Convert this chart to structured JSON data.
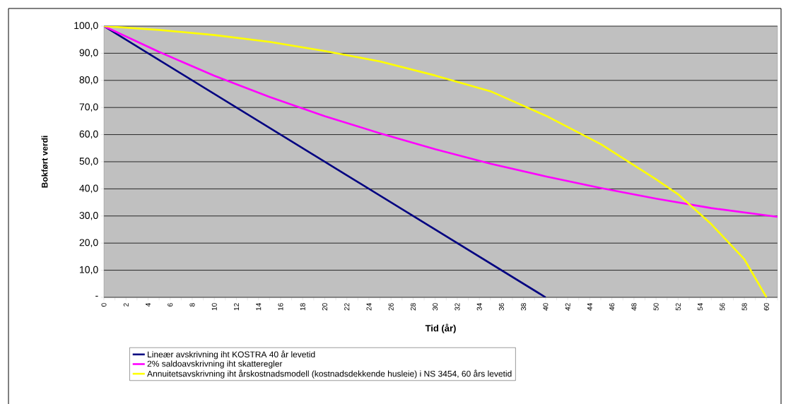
{
  "chart_data": {
    "type": "line",
    "xlabel": "Tid (år)",
    "ylabel": "Bokført verdi",
    "xlim": [
      0,
      61
    ],
    "ylim": [
      0,
      100
    ],
    "xticks": [
      0,
      {
        "value": 1,
        "label": null
      },
      2,
      {
        "value": 3,
        "label": null
      },
      4,
      {
        "value": 5,
        "label": null
      },
      6,
      {
        "value": 7,
        "label": null
      },
      8,
      {
        "value": 9,
        "label": null
      },
      10,
      {
        "value": 11,
        "label": null
      },
      12,
      {
        "value": 13,
        "label": null
      },
      14,
      {
        "value": 15,
        "label": null
      },
      16,
      {
        "value": 17,
        "label": null
      },
      18,
      {
        "value": 19,
        "label": null
      },
      20,
      {
        "value": 21,
        "label": null
      },
      22,
      {
        "value": 23,
        "label": null
      },
      24,
      {
        "value": 25,
        "label": null
      },
      26,
      {
        "value": 27,
        "label": null
      },
      28,
      {
        "value": 29,
        "label": null
      },
      30,
      {
        "value": 31,
        "label": null
      },
      32,
      {
        "value": 33,
        "label": null
      },
      34,
      {
        "value": 35,
        "label": null
      },
      36,
      {
        "value": 37,
        "label": null
      },
      38,
      {
        "value": 39,
        "label": null
      },
      40,
      {
        "value": 41,
        "label": null
      },
      42,
      {
        "value": 43,
        "label": null
      },
      44,
      {
        "value": 45,
        "label": null
      },
      46,
      {
        "value": 47,
        "label": null
      },
      48,
      {
        "value": 49,
        "label": null
      },
      50,
      {
        "value": 51,
        "label": null
      },
      52,
      {
        "value": 53,
        "label": null
      },
      54,
      {
        "value": 55,
        "label": null
      },
      56,
      {
        "value": 57,
        "label": null
      },
      58,
      {
        "value": 59,
        "label": null
      },
      60,
      {
        "value": 61,
        "label": null
      }
    ],
    "yticks": [
      {
        "value": 0,
        "label": "-"
      },
      {
        "value": 10,
        "label": "10,0"
      },
      {
        "value": 20,
        "label": "20,0"
      },
      {
        "value": 30,
        "label": "30,0"
      },
      {
        "value": 40,
        "label": "40,0"
      },
      {
        "value": 50,
        "label": "50,0"
      },
      {
        "value": 60,
        "label": "60,0"
      },
      {
        "value": 70,
        "label": "70,0"
      },
      {
        "value": 80,
        "label": "80,0"
      },
      {
        "value": 90,
        "label": "90,0"
      },
      {
        "value": 100,
        "label": "100,0"
      }
    ],
    "grid": "y",
    "legend": "bottom",
    "marker": "none",
    "line_style": "solid",
    "series": [
      {
        "name": "Lineær avskrivning iht KOSTRA 40 år levetid",
        "color": "#000080",
        "x": [
          0,
          40
        ],
        "values": [
          100,
          0
        ]
      },
      {
        "name": "2% saldoavskrivning iht skatteregler",
        "color": "#ff00ff",
        "x": [
          0,
          5,
          10,
          15,
          20,
          25,
          30,
          35,
          40,
          45,
          50,
          55,
          61
        ],
        "values": [
          100,
          90.5,
          81.7,
          73.9,
          66.8,
          60.5,
          54.6,
          49.3,
          44.6,
          40.3,
          36.4,
          32.9,
          29.7
        ]
      },
      {
        "name": "Annuitetsavskrivning iht årskostnadsmodell (kostnadsdekkende husleie) i NS 3454, 60 års levetid",
        "color": "#ffff00",
        "x": [
          0,
          5,
          10,
          15,
          20,
          25,
          30,
          35,
          40,
          45,
          50,
          52,
          55,
          58,
          60
        ],
        "values": [
          100,
          98.6,
          96.7,
          94.2,
          90.8,
          87,
          81.8,
          76,
          67,
          56.5,
          43.5,
          38,
          27,
          14,
          0
        ]
      }
    ]
  }
}
